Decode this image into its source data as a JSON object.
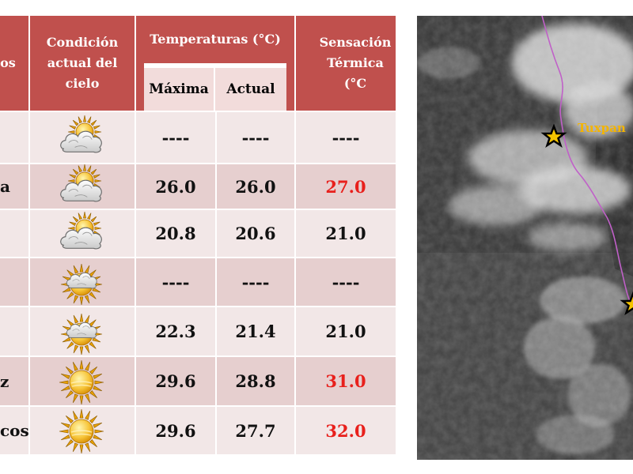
{
  "table": {
    "header": {
      "col1": "ios",
      "col2": "Condición actual del cielo",
      "group": "Temperaturas (°C)",
      "max": "Máxima",
      "actual": "Actual",
      "sens": "Sensación Térmica (°C"
    },
    "rows": [
      {
        "name": "",
        "icon": "partly-cloudy-icon",
        "max": "----",
        "actual": "----",
        "sens": "----",
        "sens_hot": false
      },
      {
        "name": "a",
        "icon": "partly-cloudy-icon",
        "max": "26.0",
        "actual": "26.0",
        "sens": "27.0",
        "sens_hot": true
      },
      {
        "name": "",
        "icon": "partly-cloudy-icon",
        "max": "20.8",
        "actual": "20.6",
        "sens": "21.0",
        "sens_hot": false
      },
      {
        "name": "",
        "icon": "mostly-sunny-icon",
        "max": "----",
        "actual": "----",
        "sens": "----",
        "sens_hot": false
      },
      {
        "name": "",
        "icon": "mostly-sunny-icon",
        "max": "22.3",
        "actual": "21.4",
        "sens": "21.0",
        "sens_hot": false
      },
      {
        "name": "z",
        "icon": "sunny-icon",
        "max": "29.6",
        "actual": "28.8",
        "sens": "31.0",
        "sens_hot": true
      },
      {
        "name": "cos",
        "icon": "sunny-icon",
        "max": "29.6",
        "actual": "27.7",
        "sens": "32.0",
        "sens_hot": true
      }
    ],
    "colors": {
      "header": "#c0504d",
      "hot": "#e8201c",
      "row_light": "#f2e7e7",
      "row_dark": "#e6cfcf"
    }
  },
  "satellite": {
    "label": "Tuxpan",
    "label_color": "#f4b400",
    "marker_icon": "star-icon",
    "boundary_color": "#c060c8"
  }
}
